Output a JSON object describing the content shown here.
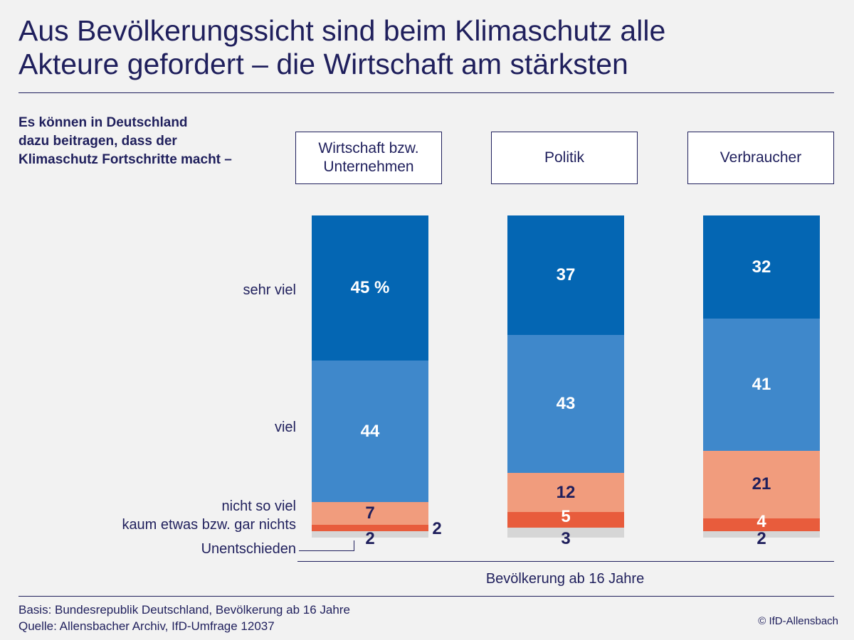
{
  "title_line1": "Aus Bevölkerungssicht sind beim Klimaschutz alle",
  "title_line2": "Akteure gefordert – die Wirtschaft am stärksten",
  "question_line1": "Es können in Deutschland",
  "question_line2": "dazu beitragen, dass der",
  "question_line3": "Klimaschutz Fortschritte macht –",
  "headers": [
    {
      "line1": "Wirtschaft bzw.",
      "line2": "Unternehmen"
    },
    {
      "line1": "Politik",
      "line2": ""
    },
    {
      "line1": "Verbraucher",
      "line2": ""
    }
  ],
  "row_labels": {
    "sehr_viel": "sehr viel",
    "viel": "viel",
    "nicht_so_viel": "nicht so viel",
    "kaum": "kaum etwas bzw. gar nichts",
    "unentschieden": "Unentschieden"
  },
  "base_label": "Bevölkerung ab 16 Jahre",
  "source_line1": "Basis: Bundesrepublik Deutschland, Bevölkerung ab 16 Jahre",
  "source_line2": "Quelle: Allensbacher Archiv, IfD-Umfrage 12037",
  "copyright": "© IfD-Allensbach",
  "colors": {
    "sehr_viel": "#0466b3",
    "viel": "#3f88cb",
    "nicht_so_viel": "#f19c7d",
    "kaum": "#e85c3c",
    "unentschieden": "#d6d6d6",
    "text_dark": "#1f1f5c",
    "text_light": "#ffffff"
  },
  "chart_data": {
    "type": "bar",
    "stacked": true,
    "unit": "%",
    "categories": [
      "Wirtschaft bzw. Unternehmen",
      "Politik",
      "Verbraucher"
    ],
    "series": [
      {
        "name": "sehr viel",
        "values": [
          45,
          37,
          32
        ],
        "labels": [
          "45 %",
          "37",
          "32"
        ]
      },
      {
        "name": "viel",
        "values": [
          44,
          43,
          41
        ],
        "labels": [
          "44",
          "43",
          "41"
        ]
      },
      {
        "name": "nicht so viel",
        "values": [
          7,
          12,
          21
        ],
        "labels": [
          "7",
          "12",
          "21"
        ]
      },
      {
        "name": "kaum etwas bzw. gar nichts",
        "values": [
          2,
          5,
          4
        ],
        "labels": [
          "2",
          "5",
          "4"
        ]
      },
      {
        "name": "Unentschieden",
        "values": [
          2,
          3,
          2
        ],
        "labels": [
          "2",
          "3",
          "2"
        ]
      }
    ]
  }
}
